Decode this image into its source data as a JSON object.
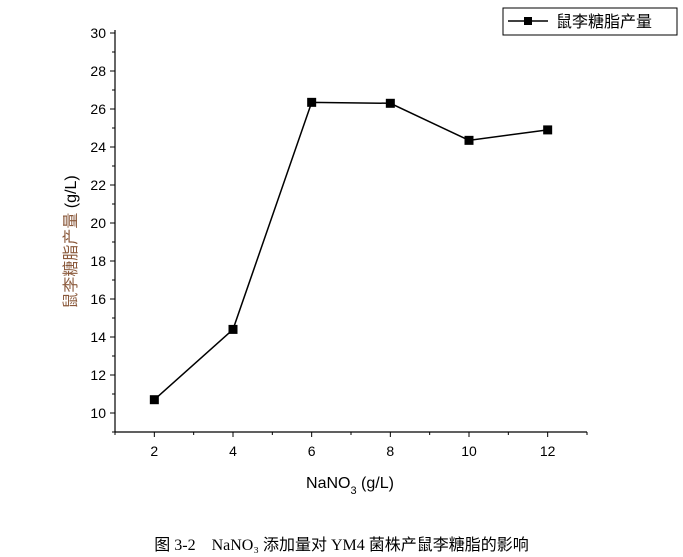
{
  "chart_data": {
    "type": "line",
    "x": [
      2,
      4,
      6,
      8,
      10,
      12
    ],
    "series": [
      {
        "name": "鼠李糖脂产量",
        "values": [
          10.7,
          14.4,
          26.35,
          26.3,
          24.35,
          24.9
        ]
      }
    ],
    "xlabel": "NaNO3 (g/L)",
    "xlabel_parts": {
      "main": "NaNO",
      "sub": "3",
      "unit": " (g/L)"
    },
    "ylabel": "鼠李糖脂产量 (g/L)",
    "ylabel_parts": {
      "main": "鼠李糖脂产量",
      "unit": " (g/L)"
    },
    "xlim": [
      1,
      13
    ],
    "ylim": [
      9,
      30
    ],
    "xticks": [
      2,
      4,
      6,
      8,
      10,
      12
    ],
    "yticks": [
      10,
      12,
      14,
      16,
      18,
      20,
      22,
      24,
      26,
      28,
      30
    ],
    "grid": false,
    "legend": "top-right",
    "caption": "图 3-2　NaNO₃ 添加量对 YM4 菌株产鼠李糖脂的影响",
    "line_color": "#000000",
    "ylabel_color": "#8b5a3c"
  }
}
